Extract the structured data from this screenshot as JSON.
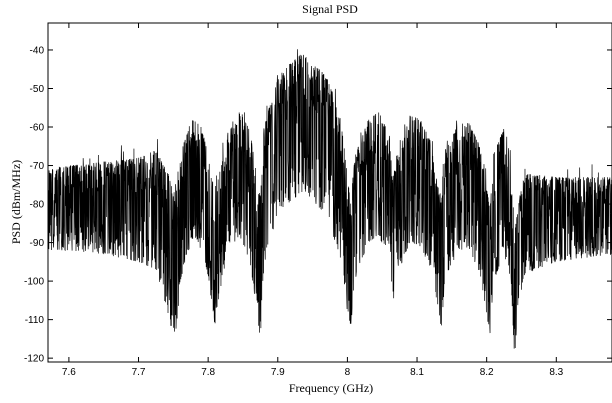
{
  "chart_data": {
    "type": "line",
    "title": "Signal PSD",
    "xlabel": "Frequency (GHz)",
    "ylabel": "PSD (dBm/MHz)",
    "xlim": [
      7.57,
      8.38
    ],
    "ylim": [
      -121,
      -33
    ],
    "x_ticks": [
      7.6,
      7.7,
      7.8,
      7.9,
      8.0,
      8.1,
      8.2,
      8.3
    ],
    "x_tick_labels": [
      "7.6",
      "7.7",
      "7.8",
      "7.9",
      "8",
      "8.1",
      "8.2",
      "8.3"
    ],
    "y_ticks": [
      -40,
      -50,
      -60,
      -70,
      -80,
      -90,
      -100,
      -110,
      -120
    ],
    "y_tick_labels": [
      "-40",
      "-50",
      "-60",
      "-70",
      "-80",
      "-90",
      "-100",
      "-110",
      "-120"
    ],
    "grid": false,
    "line_color": "#000000",
    "series": [
      {
        "envelope_x": [
          7.57,
          7.6,
          7.65,
          7.7,
          7.725,
          7.745,
          7.75,
          7.755,
          7.765,
          7.78,
          7.795,
          7.805,
          7.81,
          7.815,
          7.83,
          7.845,
          7.86,
          7.87,
          7.875,
          7.88,
          7.9,
          7.92,
          7.935,
          7.95,
          7.97,
          7.99,
          8.0,
          8.005,
          8.01,
          8.03,
          8.045,
          8.06,
          8.065,
          8.07,
          8.09,
          8.105,
          8.12,
          8.13,
          8.135,
          8.14,
          8.16,
          8.175,
          8.19,
          8.2,
          8.205,
          8.21,
          8.225,
          8.235,
          8.24,
          8.245,
          8.255,
          8.3,
          8.38
        ],
        "upper_dbm": [
          -71,
          -70,
          -69,
          -68,
          -66,
          -73,
          -78,
          -73,
          -64,
          -57,
          -63,
          -73,
          -77,
          -73,
          -60,
          -55,
          -61,
          -73,
          -78,
          -60,
          -47,
          -43,
          -41,
          -43,
          -47,
          -56,
          -73,
          -80,
          -68,
          -58,
          -56,
          -62,
          -74,
          -66,
          -57,
          -58,
          -64,
          -75,
          -80,
          -66,
          -59,
          -59,
          -65,
          -76,
          -81,
          -67,
          -60,
          -66,
          -88,
          -80,
          -72,
          -73,
          -73
        ],
        "lower_dbm": [
          -92,
          -92,
          -93,
          -95,
          -97,
          -110,
          -117,
          -111,
          -96,
          -88,
          -94,
          -105,
          -112,
          -105,
          -92,
          -88,
          -95,
          -108,
          -115,
          -96,
          -82,
          -79,
          -77,
          -79,
          -83,
          -94,
          -108,
          -112,
          -100,
          -90,
          -88,
          -95,
          -107,
          -99,
          -90,
          -91,
          -97,
          -108,
          -113,
          -99,
          -92,
          -92,
          -98,
          -109,
          -114,
          -100,
          -93,
          -100,
          -120,
          -107,
          -98,
          -95,
          -93
        ]
      }
    ]
  }
}
